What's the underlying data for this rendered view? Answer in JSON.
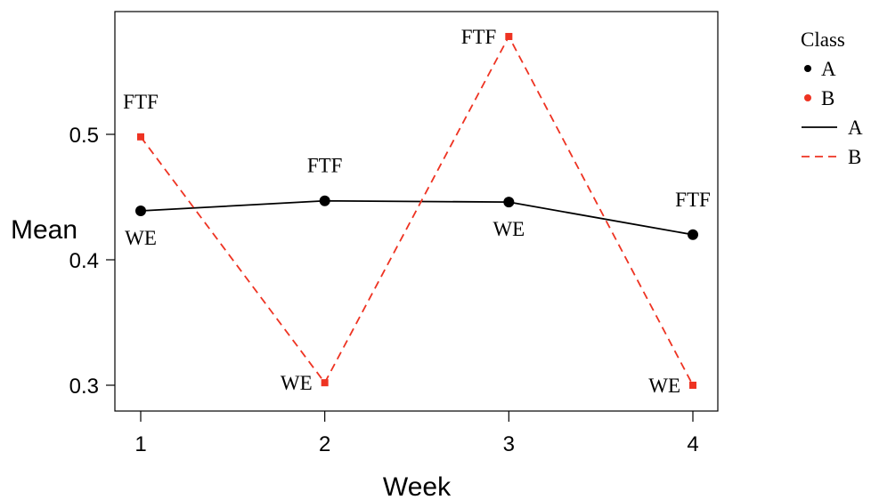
{
  "chart_data": {
    "type": "line",
    "xlabel": "Week",
    "ylabel": "Mean",
    "x": [
      1,
      2,
      3,
      4
    ],
    "x_ticks": [
      "1",
      "2",
      "3",
      "4"
    ],
    "y_ticks": [
      "0.3",
      "0.4",
      "0.5"
    ],
    "ylim": [
      0.275,
      0.6
    ],
    "xlim": [
      0.85,
      4.15
    ],
    "grid": false,
    "legend_placement": "outside-right",
    "legend_title": "Class",
    "series": [
      {
        "name": "A",
        "color": "#000000",
        "line_style": "solid",
        "marker": "circle",
        "values": [
          0.439,
          0.447,
          0.446,
          0.42
        ],
        "point_labels": [
          "WE",
          "FTF",
          "WE",
          "FTF"
        ]
      },
      {
        "name": "B",
        "color": "#ee3322",
        "line_style": "dashed",
        "marker": "square",
        "values": [
          0.498,
          0.302,
          0.578,
          0.3
        ],
        "point_labels": [
          "FTF",
          "WE",
          "FTF",
          "WE"
        ]
      }
    ]
  }
}
